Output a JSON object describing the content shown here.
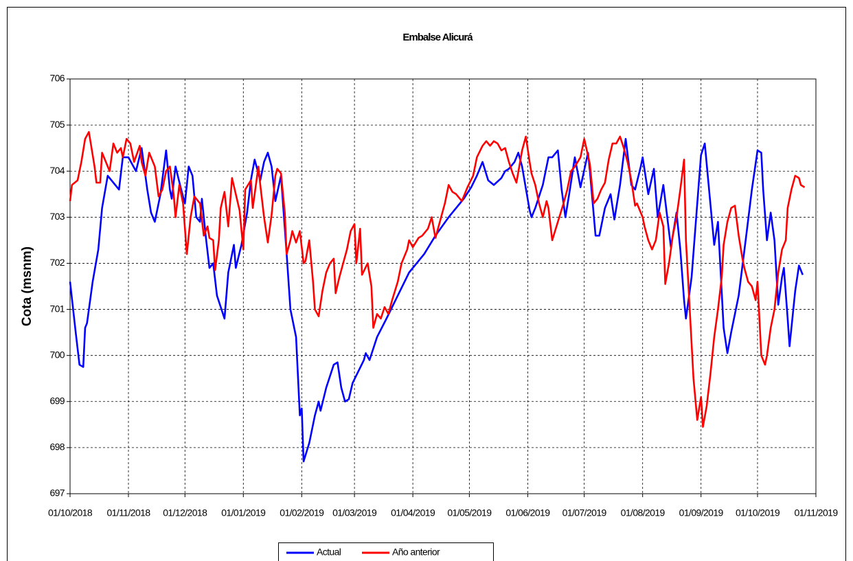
{
  "chart_data": {
    "type": "line",
    "title": "Embalse Alicurá",
    "y_label": "Cota (msnm)",
    "xlim": [
      "01/10/2018",
      "01/11/2019"
    ],
    "xticks": [
      "01/10/2018",
      "01/11/2018",
      "01/12/2018",
      "01/01/2019",
      "01/02/2019",
      "01/03/2019",
      "01/04/2019",
      "01/05/2019",
      "01/06/2019",
      "01/07/2019",
      "01/08/2019",
      "01/09/2019",
      "01/10/2019",
      "01/11/2019"
    ],
    "ylim": [
      697,
      706
    ],
    "yticks": [
      697,
      698,
      699,
      700,
      701,
      702,
      703,
      704,
      705,
      706
    ],
    "grid": true,
    "legend": "bottom",
    "series": [
      {
        "name": "Actual",
        "color": "#0000ff",
        "x": [
          "01/10/2018",
          "04/10/2018",
          "06/10/2018",
          "08/10/2018",
          "09/10/2018",
          "10/10/2018",
          "13/10/2018",
          "16/10/2018",
          "18/10/2018",
          "21/10/2018",
          "24/10/2018",
          "27/10/2018",
          "29/10/2018",
          "01/11/2018",
          "05/11/2018",
          "08/11/2018",
          "11/11/2018",
          "13/11/2018",
          "15/11/2018",
          "17/11/2018",
          "18/11/2018",
          "21/11/2018",
          "23/11/2018",
          "24/11/2018",
          "26/11/2018",
          "29/11/2018",
          "01/12/2018",
          "03/12/2018",
          "05/12/2018",
          "07/12/2018",
          "09/12/2018",
          "10/12/2018",
          "12/12/2018",
          "14/12/2018",
          "16/12/2018",
          "18/12/2018",
          "22/12/2018",
          "24/12/2018",
          "27/12/2018",
          "28/12/2018",
          "31/12/2018",
          "03/01/2019",
          "05/01/2019",
          "07/01/2019",
          "10/01/2019",
          "12/01/2019",
          "14/01/2019",
          "16/01/2019",
          "18/01/2019",
          "21/01/2019",
          "24/01/2019",
          "26/01/2019",
          "29/01/2019",
          "31/01/2019",
          "01/02/2019",
          "02/02/2019",
          "05/02/2019",
          "08/02/2019",
          "10/02/2019",
          "11/02/2019",
          "14/02/2019",
          "18/02/2019",
          "20/02/2019",
          "22/02/2019",
          "24/02/2019",
          "26/02/2019",
          "28/02/2019",
          "06/03/2019",
          "07/03/2019",
          "09/03/2019",
          "13/03/2019",
          "18/03/2019",
          "24/03/2019",
          "30/03/2019",
          "07/04/2019",
          "13/04/2019",
          "20/04/2019",
          "28/04/2019",
          "02/05/2019",
          "05/05/2019",
          "08/05/2019",
          "11/05/2019",
          "14/05/2019",
          "18/05/2019",
          "20/05/2019",
          "22/05/2019",
          "25/05/2019",
          "27/05/2019",
          "29/05/2019",
          "02/06/2019",
          "03/06/2019",
          "05/06/2019",
          "09/06/2019",
          "12/06/2019",
          "14/06/2019",
          "17/06/2019",
          "19/06/2019",
          "21/06/2019",
          "23/06/2019",
          "26/06/2019",
          "29/06/2019",
          "03/07/2019",
          "04/07/2019",
          "07/07/2019",
          "09/07/2019",
          "12/07/2019",
          "15/07/2019",
          "17/07/2019",
          "20/07/2019",
          "23/07/2019",
          "26/07/2019",
          "28/07/2019",
          "31/07/2019",
          "01/08/2019",
          "04/08/2019",
          "07/08/2019",
          "09/08/2019",
          "12/08/2019",
          "16/08/2019",
          "19/08/2019",
          "21/08/2019",
          "23/08/2019",
          "24/08/2019",
          "27/08/2019",
          "30/08/2019",
          "01/09/2019",
          "03/09/2019",
          "08/09/2019",
          "10/09/2019",
          "13/09/2019",
          "15/09/2019",
          "17/09/2019",
          "21/09/2019",
          "25/09/2019",
          "28/09/2019",
          "01/10/2019",
          "03/10/2019",
          "04/10/2019",
          "06/10/2019",
          "08/10/2019",
          "10/10/2019",
          "12/10/2019",
          "14/10/2019",
          "15/10/2019",
          "17/10/2019",
          "18/10/2019",
          "21/10/2019",
          "23/10/2019",
          "25/10/2019"
        ],
        "values": [
          701.6,
          700.5,
          699.8,
          699.75,
          700.6,
          700.7,
          701.6,
          702.3,
          703.2,
          703.9,
          703.75,
          703.6,
          704.3,
          704.3,
          704.0,
          704.5,
          703.6,
          703.1,
          702.9,
          703.3,
          703.5,
          704.45,
          703.6,
          703.4,
          704.1,
          703.6,
          703.3,
          704.1,
          703.9,
          703.0,
          702.9,
          703.4,
          702.6,
          701.9,
          702.0,
          701.3,
          700.8,
          701.8,
          702.4,
          701.9,
          702.4,
          703.1,
          703.8,
          704.25,
          703.8,
          704.2,
          704.4,
          704.1,
          703.35,
          703.9,
          702.2,
          701.0,
          700.4,
          698.7,
          698.85,
          697.7,
          698.1,
          698.7,
          699.0,
          698.8,
          699.3,
          699.8,
          699.85,
          699.3,
          699.0,
          699.05,
          699.4,
          699.9,
          700.05,
          699.9,
          700.4,
          700.8,
          701.3,
          701.8,
          702.2,
          702.6,
          703.0,
          703.4,
          703.65,
          703.9,
          704.2,
          703.8,
          703.7,
          703.85,
          704.0,
          704.05,
          704.2,
          704.4,
          704.1,
          703.15,
          703.0,
          703.2,
          703.7,
          704.3,
          704.3,
          704.45,
          703.6,
          703.0,
          703.5,
          704.3,
          703.65,
          704.4,
          704.0,
          702.6,
          702.6,
          703.2,
          703.5,
          702.95,
          703.7,
          704.7,
          703.7,
          703.6,
          704.1,
          704.3,
          703.5,
          704.05,
          703.0,
          703.7,
          702.35,
          703.1,
          702.3,
          701.2,
          700.8,
          701.7,
          703.3,
          704.35,
          704.6,
          702.4,
          702.9,
          700.6,
          700.05,
          700.5,
          701.3,
          702.6,
          703.6,
          704.45,
          704.4,
          703.6,
          702.5,
          703.1,
          702.5,
          701.1,
          701.7,
          701.9,
          700.8,
          700.2,
          701.4,
          701.95,
          701.75
        ]
      },
      {
        "name": "Año anterior",
        "color": "#ff0000",
        "x": [
          "01/10/2018",
          "02/10/2018",
          "05/10/2018",
          "07/10/2018",
          "09/10/2018",
          "11/10/2018",
          "12/10/2018",
          "14/10/2018",
          "15/10/2018",
          "17/10/2018",
          "18/10/2018",
          "20/10/2018",
          "22/10/2018",
          "24/10/2018",
          "26/10/2018",
          "28/10/2018",
          "29/10/2018",
          "31/10/2018",
          "02/11/2018",
          "04/11/2018",
          "07/11/2018",
          "08/11/2018",
          "10/11/2018",
          "12/11/2018",
          "15/11/2018",
          "17/11/2018",
          "19/11/2018",
          "21/11/2018",
          "23/11/2018",
          "25/11/2018",
          "26/11/2018",
          "28/11/2018",
          "30/11/2018",
          "02/12/2018",
          "04/12/2018",
          "06/12/2018",
          "09/12/2018",
          "11/12/2018",
          "13/12/2018",
          "14/12/2018",
          "16/12/2018",
          "17/12/2018",
          "19/12/2018",
          "20/12/2018",
          "22/12/2018",
          "24/12/2018",
          "26/12/2018",
          "28/12/2018",
          "30/12/2018",
          "01/01/2019",
          "02/01/2019",
          "05/01/2019",
          "06/01/2019",
          "09/01/2019",
          "10/01/2019",
          "12/01/2019",
          "14/01/2019",
          "16/01/2019",
          "18/01/2019",
          "19/01/2019",
          "21/01/2019",
          "23/01/2019",
          "24/01/2019",
          "26/01/2019",
          "27/01/2019",
          "29/01/2019",
          "31/01/2019",
          "02/02/2019",
          "03/02/2019",
          "05/02/2019",
          "07/02/2019",
          "08/02/2019",
          "10/02/2019",
          "12/02/2019",
          "14/02/2019",
          "16/02/2019",
          "18/02/2019",
          "19/02/2019",
          "21/02/2019",
          "23/02/2019",
          "25/02/2019",
          "27/02/2019",
          "01/03/2019",
          "02/03/2019",
          "04/03/2019",
          "05/03/2019",
          "08/03/2019",
          "10/03/2019",
          "11/03/2019",
          "13/03/2019",
          "15/03/2019",
          "17/03/2019",
          "19/03/2019",
          "21/03/2019",
          "24/03/2019",
          "26/03/2019",
          "29/03/2019",
          "30/03/2019",
          "01/04/2019",
          "04/04/2019",
          "06/04/2019",
          "09/04/2019",
          "11/04/2019",
          "13/04/2019",
          "15/04/2019",
          "18/04/2019",
          "20/04/2019",
          "22/04/2019",
          "24/04/2019",
          "27/04/2019",
          "30/04/2019",
          "03/05/2019",
          "05/05/2019",
          "08/05/2019",
          "10/05/2019",
          "12/05/2019",
          "14/05/2019",
          "16/05/2019",
          "18/05/2019",
          "20/05/2019",
          "22/05/2019",
          "24/05/2019",
          "26/05/2019",
          "29/05/2019",
          "31/05/2019",
          "02/06/2019",
          "03/06/2019",
          "05/06/2019",
          "07/06/2019",
          "09/06/2019",
          "11/06/2019",
          "12/06/2019",
          "14/06/2019",
          "17/06/2019",
          "20/06/2019",
          "22/06/2019",
          "24/06/2019",
          "26/06/2019",
          "29/06/2019",
          "01/07/2019",
          "04/07/2019",
          "06/07/2019",
          "08/07/2019",
          "10/07/2019",
          "12/07/2019",
          "14/07/2019",
          "16/07/2019",
          "18/07/2019",
          "20/07/2019",
          "22/07/2019",
          "24/07/2019",
          "26/07/2019",
          "28/07/2019",
          "29/07/2019",
          "01/08/2019",
          "02/08/2019",
          "04/08/2019",
          "06/08/2019",
          "08/08/2019",
          "10/08/2019",
          "12/08/2019",
          "13/08/2019",
          "15/08/2019",
          "17/08/2019",
          "19/08/2019",
          "21/08/2019",
          "23/08/2019",
          "24/08/2019",
          "26/08/2019",
          "28/08/2019",
          "30/08/2019",
          "01/09/2019",
          "02/09/2019",
          "04/09/2019",
          "06/09/2019",
          "08/09/2019",
          "10/09/2019",
          "12/09/2019",
          "13/09/2019",
          "15/09/2019",
          "17/09/2019",
          "19/09/2019",
          "21/09/2019",
          "23/09/2019",
          "24/09/2019",
          "26/09/2019",
          "28/09/2019",
          "30/09/2019",
          "01/10/2019",
          "03/10/2019",
          "05/10/2019",
          "06/10/2019",
          "08/10/2019",
          "10/10/2019",
          "12/10/2019",
          "14/10/2019",
          "16/10/2019",
          "17/10/2019",
          "19/10/2019",
          "21/10/2019",
          "23/10/2019",
          "24/10/2019",
          "26/10/2019"
        ],
        "values": [
          703.35,
          703.7,
          703.8,
          704.2,
          704.7,
          704.85,
          704.6,
          704.1,
          703.75,
          703.75,
          704.4,
          704.2,
          704.0,
          704.6,
          704.4,
          704.5,
          704.3,
          704.7,
          704.6,
          704.2,
          704.55,
          704.2,
          703.9,
          704.4,
          704.1,
          703.45,
          703.6,
          704.0,
          704.1,
          703.5,
          703.0,
          703.7,
          703.3,
          702.2,
          703.0,
          703.45,
          703.3,
          702.6,
          702.8,
          702.55,
          702.5,
          701.85,
          702.5,
          703.2,
          703.55,
          702.8,
          703.85,
          703.5,
          703.15,
          702.3,
          703.6,
          703.8,
          703.2,
          704.1,
          703.7,
          703.0,
          702.45,
          703.05,
          703.9,
          704.05,
          703.95,
          703.1,
          702.2,
          702.5,
          702.7,
          702.45,
          702.7,
          702.0,
          702.05,
          702.5,
          701.6,
          701.0,
          700.85,
          701.4,
          701.8,
          702.0,
          702.1,
          701.35,
          701.7,
          702.0,
          702.3,
          702.7,
          702.85,
          702.0,
          702.75,
          701.75,
          702.0,
          701.5,
          700.6,
          700.9,
          700.8,
          701.05,
          700.9,
          701.2,
          701.6,
          702.0,
          702.3,
          702.5,
          702.35,
          702.55,
          702.6,
          702.75,
          703.0,
          702.55,
          702.85,
          703.3,
          703.7,
          703.55,
          703.5,
          703.35,
          703.65,
          703.9,
          704.3,
          704.55,
          704.65,
          704.55,
          704.65,
          704.6,
          704.45,
          704.5,
          704.2,
          703.95,
          703.75,
          704.45,
          704.75,
          704.2,
          703.95,
          703.7,
          703.3,
          703.0,
          703.35,
          703.2,
          702.5,
          702.9,
          703.3,
          703.6,
          704.0,
          704.1,
          704.3,
          704.7,
          704.15,
          703.3,
          703.4,
          703.6,
          703.75,
          704.25,
          704.6,
          704.6,
          704.75,
          704.5,
          704.2,
          703.8,
          703.25,
          703.3,
          703.0,
          702.8,
          702.5,
          702.3,
          702.5,
          703.1,
          702.8,
          701.55,
          702.0,
          702.6,
          703.0,
          703.6,
          704.25,
          702.5,
          701.0,
          699.5,
          698.6,
          699.1,
          698.45,
          698.9,
          699.6,
          700.4,
          701.0,
          701.7,
          702.4,
          702.9,
          703.2,
          703.25,
          702.6,
          702.1,
          701.9,
          701.6,
          701.5,
          701.2,
          701.6,
          700.0,
          699.8,
          700.0,
          700.6,
          701.0,
          701.8,
          702.3,
          702.5,
          703.2,
          703.6,
          703.9,
          703.85,
          703.7,
          703.65
        ]
      }
    ]
  }
}
